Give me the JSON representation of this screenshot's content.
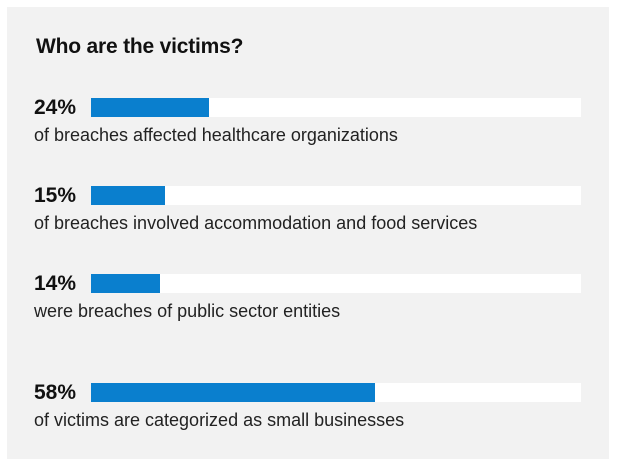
{
  "title": "Who are the victims?",
  "colors": {
    "panel_bg": "#f2f2f2",
    "track": "#ffffff",
    "bar": "#0a7fce",
    "text": "#111111"
  },
  "chart_data": {
    "type": "bar",
    "orientation": "horizontal",
    "title": "Who are the victims?",
    "xlim": [
      0,
      100
    ],
    "items": [
      {
        "value": 24,
        "label": "24%",
        "description": "of breaches affected healthcare organizations"
      },
      {
        "value": 15,
        "label": "15%",
        "description": "of breaches involved accommodation and food services"
      },
      {
        "value": 14,
        "label": "14%",
        "description": "were breaches of public sector entities"
      },
      {
        "value": 58,
        "label": "58%",
        "description": "of victims are categorized as small businesses"
      }
    ]
  }
}
